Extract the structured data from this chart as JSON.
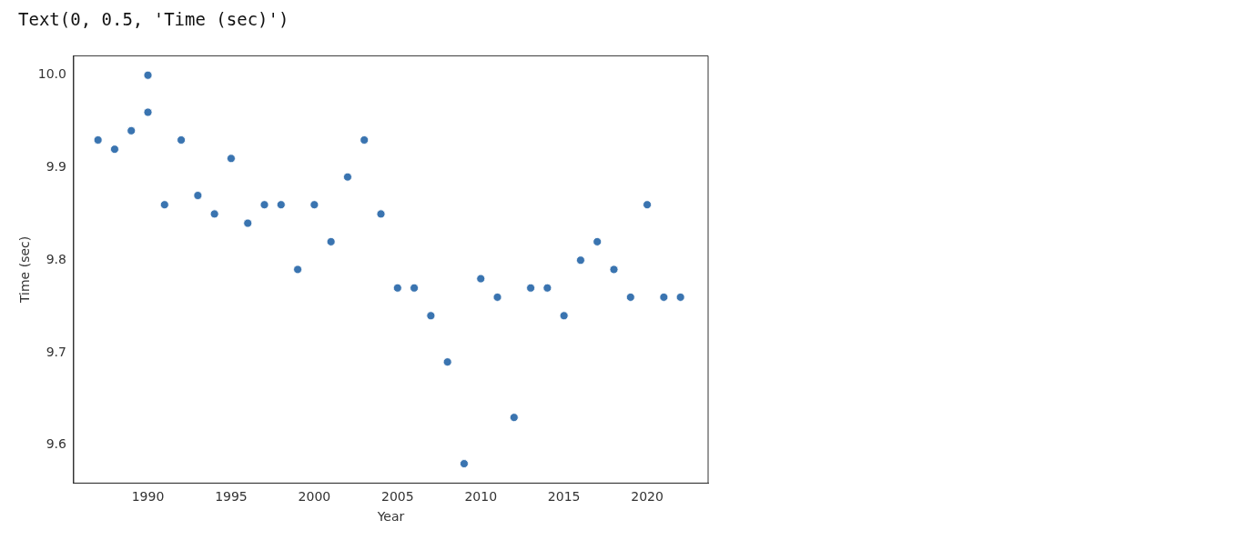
{
  "chart_data": {
    "type": "scatter",
    "annotations": [
      "Text(0, 0.5, 'Time (sec)')"
    ],
    "xlabel": "Year",
    "ylabel": "Time (sec)",
    "x": [
      1987,
      1988,
      1989,
      1990,
      1990,
      1991,
      1992,
      1993,
      1994,
      1995,
      1996,
      1997,
      1998,
      1999,
      2000,
      2001,
      2002,
      2003,
      2004,
      2005,
      2006,
      2007,
      2008,
      2009,
      2010,
      2011,
      2012,
      2013,
      2014,
      2015,
      2016,
      2017,
      2018,
      2019,
      2020,
      2021,
      2022
    ],
    "values": [
      9.93,
      9.92,
      9.94,
      10.0,
      9.96,
      9.86,
      9.93,
      9.87,
      9.85,
      9.91,
      9.84,
      9.86,
      9.86,
      9.79,
      9.86,
      9.82,
      9.89,
      9.93,
      9.85,
      9.77,
      9.77,
      9.74,
      9.69,
      9.58,
      9.78,
      9.76,
      9.63,
      9.77,
      9.77,
      9.74,
      9.8,
      9.82,
      9.79,
      9.76,
      9.86,
      9.76,
      9.76
    ],
    "color": "#3a74b0",
    "marker": "circle",
    "grid": false,
    "legend": false,
    "xlim": [
      1985.54,
      2023.66
    ],
    "xticks": [
      1990,
      1995,
      2000,
      2005,
      2010,
      2015,
      2020
    ],
    "ylim": [
      9.559,
      10.021
    ],
    "yticks": [
      9.6,
      9.7,
      9.8,
      9.9,
      {
        "value": 10,
        "label": "10.0"
      }
    ]
  }
}
